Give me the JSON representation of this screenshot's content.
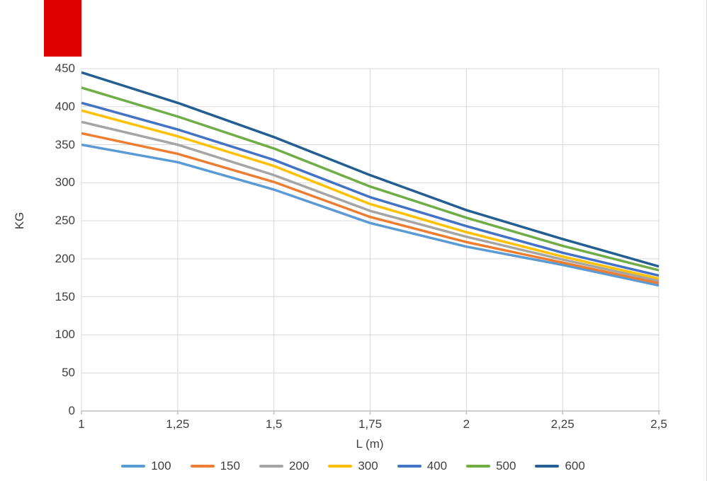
{
  "page": {
    "background_color": "#ffffff",
    "right_border_color": "#dadada"
  },
  "decoration": {
    "red_block_color": "#e00000"
  },
  "chart_data": {
    "type": "line",
    "x": [
      1,
      1.25,
      1.5,
      1.75,
      2,
      2.25,
      2.5
    ],
    "series": [
      {
        "name": "100",
        "color": "#5B9BD5",
        "values": [
          350,
          327,
          291,
          247,
          216,
          192,
          165
        ]
      },
      {
        "name": "150",
        "color": "#ED7D31",
        "values": [
          365,
          338,
          301,
          255,
          222,
          195,
          168
        ]
      },
      {
        "name": "200",
        "color": "#A5A5A5",
        "values": [
          380,
          350,
          310,
          263,
          229,
          199,
          171
        ]
      },
      {
        "name": "300",
        "color": "#FFC000",
        "values": [
          395,
          361,
          322,
          272,
          235,
          203,
          174
        ]
      },
      {
        "name": "400",
        "color": "#4472C4",
        "values": [
          405,
          370,
          330,
          281,
          243,
          208,
          178
        ]
      },
      {
        "name": "500",
        "color": "#70AD47",
        "values": [
          425,
          387,
          345,
          295,
          254,
          217,
          185
        ]
      },
      {
        "name": "600",
        "color": "#255E91",
        "values": [
          445,
          405,
          360,
          310,
          264,
          226,
          190
        ]
      }
    ],
    "title": "",
    "xlabel": "L (m)",
    "ylabel": "KG",
    "xlim": [
      1,
      2.5
    ],
    "ylim": [
      0,
      450
    ],
    "x_ticks": [
      {
        "pos": 1,
        "label": "1"
      },
      {
        "pos": 1.25,
        "label": "1,25"
      },
      {
        "pos": 1.5,
        "label": "1,5"
      },
      {
        "pos": 1.75,
        "label": "1,75"
      },
      {
        "pos": 2,
        "label": "2"
      },
      {
        "pos": 2.25,
        "label": "2,25"
      },
      {
        "pos": 2.5,
        "label": "2,5"
      }
    ],
    "y_ticks": [
      0,
      50,
      100,
      150,
      200,
      250,
      300,
      350,
      400,
      450
    ],
    "grid": true,
    "grid_color": "#D9D9D9",
    "axis_line_color": "#BFBFBF",
    "tick_text_color": "#404040",
    "legend_position": "bottom",
    "legend_labels": [
      "100",
      "150",
      "200",
      "300",
      "400",
      "500",
      "600"
    ]
  }
}
